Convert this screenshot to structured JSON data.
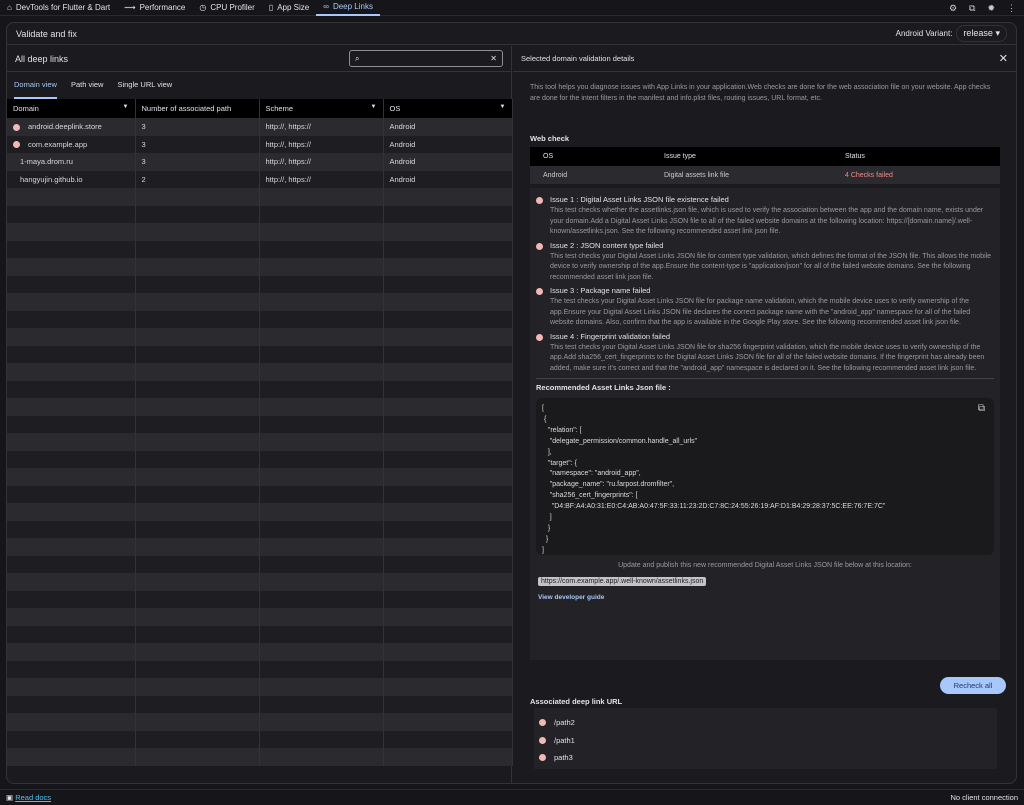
{
  "nav": {
    "items": [
      {
        "label": "DevTools for Flutter & Dart",
        "icon": "home-icon",
        "glyph": "⌂"
      },
      {
        "label": "Performance",
        "icon": "performance-icon",
        "glyph": "⟿"
      },
      {
        "label": "CPU Profiler",
        "icon": "cpu-profiler-icon",
        "glyph": "◷"
      },
      {
        "label": "App Size",
        "icon": "app-size-icon",
        "glyph": "▯"
      },
      {
        "label": "Deep Links",
        "icon": "link-icon",
        "glyph": "∞"
      }
    ],
    "active": "Deep Links",
    "right_icons": [
      "settings-icon",
      "extensions-icon",
      "bug-icon",
      "more-icon"
    ]
  },
  "header": {
    "title": "Validate and fix",
    "variant_label": "Android Variant:",
    "variant_value": "release"
  },
  "left": {
    "title": "All deep links",
    "search_placeholder": "",
    "tabs": [
      "Domain view",
      "Path view",
      "Single URL view"
    ],
    "active_tab": "Domain view",
    "columns": [
      "Domain",
      "Number of associated path",
      "Scheme",
      "OS"
    ],
    "rows": [
      {
        "domain": "android.deeplink.store",
        "paths": "3",
        "scheme": "http://, https://",
        "os": "Android",
        "error": true
      },
      {
        "domain": "com.example.app",
        "paths": "3",
        "scheme": "http://, https://",
        "os": "Android",
        "error": true
      },
      {
        "domain": "1-maya.drom.ru",
        "paths": "3",
        "scheme": "http://, https://",
        "os": "Android",
        "error": false
      },
      {
        "domain": "hangyujin.github.io",
        "paths": "2",
        "scheme": "http://, https://",
        "os": "Android",
        "error": false
      }
    ]
  },
  "details": {
    "title": "Selected domain validation details",
    "intro": "This tool helps you diagnose issues with App Links in your application.Web checks are done for the web association file on your website. App checks are done for the intent filters in the manifest and info.plist files, routing issues, URL format, etc.",
    "web_check_label": "Web check",
    "web_columns": [
      "OS",
      "Issue type",
      "Status"
    ],
    "web_row": {
      "os": "Android",
      "issue_type": "Digital assets link file",
      "status": "4 Checks failed"
    },
    "issues": [
      {
        "title": "Issue 1 : Digital Asset Links JSON file existence failed",
        "desc": "This test checks whether the assetlinks.json file, which is used to verify the association between the app and the domain name, exists under your domain.Add a Digital Asset Links JSON file to all of the failed website domains at the following location: https://[domain.name]/.well-known/assetlinks.json. See the following recommended asset link json file."
      },
      {
        "title": "Issue 2 : JSON content type failed",
        "desc": "This test checks your Digital Asset Links JSON file for content type validation, which defines the format of the JSON file. This allows the mobile device to verify ownership of the app.Ensure the content-type is \"application/json\" for all of the failed website domains. See the following recommended asset link json file."
      },
      {
        "title": "Issue 3 : Package name failed",
        "desc": "The test checks your Digital Asset Links JSON file for package name validation, which the mobile device uses to verify ownership of the app.Ensure your Digital Asset Links JSON file declares the correct package name with the \"android_app\" namespace for all of the failed website domains. Also, confirm that the app is available in the Google Play store. See the following recommended asset link json file."
      },
      {
        "title": "Issue 4 : Fingerprint validation failed",
        "desc": "This test checks your Digital Asset Links JSON file for sha256 fingerprint validation, which the mobile device uses to verify ownership of the app.Add sha256_cert_fingerprints to the Digital Asset Links JSON file for all of the failed website domains. If the fingerprint has already been added, make sure it's correct and that the \"android_app\" namespace is declared on it. See the following recommended asset link json file."
      }
    ],
    "recommended_label": "Recommended Asset Links Json file :",
    "json": "[\n {\n   \"relation\": [\n    \"delegate_permission/common.handle_all_urls\"\n   ],\n   \"target\": {\n    \"namespace\": \"android_app\",\n    \"package_name\": \"ru.farpost.dromfilter\",\n    \"sha256_cert_fingerprints\": [\n     \"D4:BF:A4:A0:31:E0:C4:AB:A0:47:5F:33:11:23:2D:C7:8C:24:55:26:19:AF:D1:B4:29:28:37:5C:EE:76:7E:7C\"\n    ]\n   }\n  }\n]",
    "update_text": "Update and publish this new recommended Digital Asset Links JSON file below at this location:",
    "url": "https://com.example.app/.well-known/assetlinks.json",
    "guide": "View developer guide",
    "recheck": "Recheck all",
    "assoc_label": "Associated deep link URL",
    "assoc": [
      "/path2",
      "/path1",
      "path3"
    ]
  },
  "status": {
    "read_docs": "Read docs",
    "connection": "No client connection"
  },
  "colors": {
    "accent": "#a8c7fa",
    "error": "#f2b8b5",
    "status_failed": "#f28b82"
  }
}
